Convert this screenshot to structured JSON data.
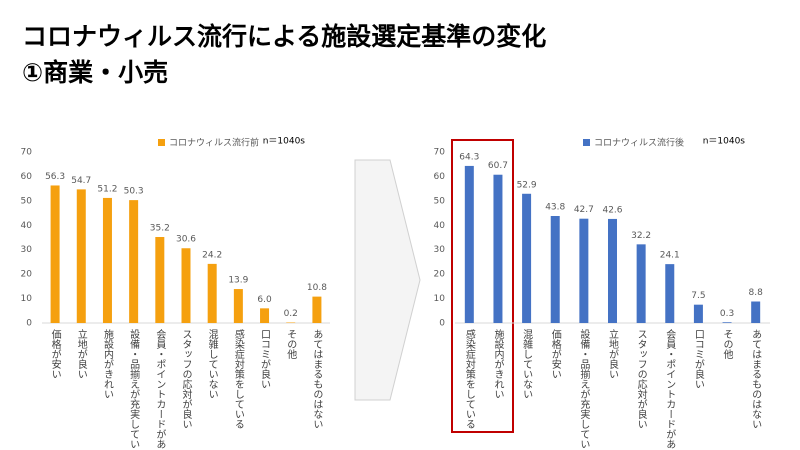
{
  "slide": {
    "title": "コロナウィルス流行による施設選定基準の変化",
    "subtitle": "①商業・小売"
  },
  "chart_data": [
    {
      "type": "bar",
      "annotation": "n＝1040s",
      "categories": [
        "価格が安い",
        "立地が良い",
        "施設内がきれい",
        "設備・品揃えが充実している",
        "会員・ポイントカードがある",
        "スタッフの応対が良い",
        "混雑していない",
        "感染症対策をしている",
        "口コミが良い",
        "その他",
        "あてはまるものはない"
      ],
      "series": [
        {
          "name": "コロナウィルス流行前",
          "color": "#f5a00f",
          "values": [
            56.3,
            54.7,
            51.2,
            50.3,
            35.2,
            30.6,
            24.2,
            13.9,
            6.0,
            0.2,
            10.8
          ],
          "value_labels": [
            "56.3",
            "54.7",
            "51.2",
            "50.3",
            "35.2",
            "30.6",
            "24.2",
            "13.9",
            "6.0",
            "0.2",
            "10.8"
          ]
        }
      ],
      "ylim": [
        0,
        70
      ],
      "yticks": [
        0,
        10,
        20,
        30,
        40,
        50,
        60,
        70
      ],
      "grid": false,
      "legend": "top"
    },
    {
      "type": "bar",
      "annotation": "n＝1040s",
      "categories": [
        "感染症対策をしている",
        "施設内がきれい",
        "混雑していない",
        "価格が安い",
        "設備・品揃えが充実している",
        "立地が良い",
        "スタッフの応対が良い",
        "会員・ポイントカードがある",
        "口コミが良い",
        "その他",
        "あてはまるものはない"
      ],
      "series": [
        {
          "name": "コロナウィルス流行後",
          "color": "#4472c4",
          "values": [
            64.3,
            60.7,
            52.9,
            43.8,
            42.7,
            42.6,
            32.2,
            24.1,
            7.5,
            0.3,
            8.8
          ],
          "value_labels": [
            "64.3",
            "60.7",
            "52.9",
            "43.8",
            "42.7",
            "42.6",
            "32.2",
            "24.1",
            "7.5",
            "0.3",
            "8.8"
          ]
        }
      ],
      "ylim": [
        0,
        70
      ],
      "yticks": [
        0,
        10,
        20,
        30,
        40,
        50,
        60,
        70
      ],
      "grid": false,
      "legend": "top"
    }
  ]
}
